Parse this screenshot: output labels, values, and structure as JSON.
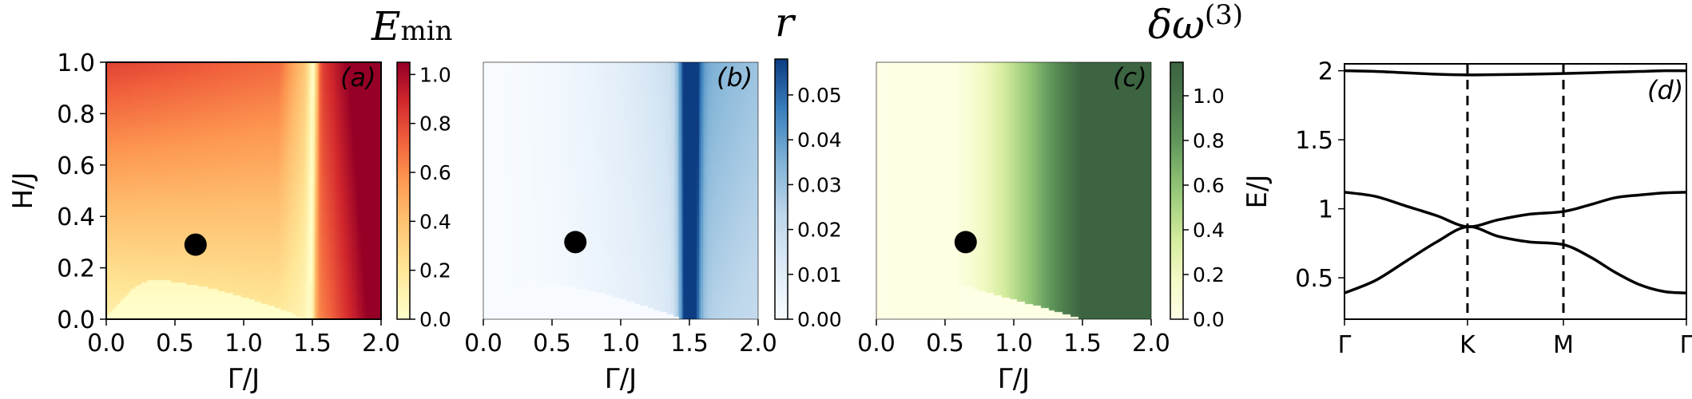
{
  "chart_data": [
    {
      "type": "heatmap",
      "panel_label": "(a)",
      "colorbar_title": "E",
      "colorbar_title_sub": "min",
      "xlabel": "Γ/J",
      "ylabel": "H/J",
      "xlim": [
        0,
        2
      ],
      "ylim": [
        0,
        1
      ],
      "xticks": [
        "0.0",
        "0.5",
        "1.0",
        "1.5",
        "2.0"
      ],
      "yticks": [
        "0.0",
        "0.2",
        "0.4",
        "0.6",
        "0.8",
        "1.0"
      ],
      "colormap": "YlOrRd",
      "colorbar_range": [
        0,
        1.05
      ],
      "colorbar_ticks": [
        "0.0",
        "0.2",
        "0.4",
        "0.6",
        "0.8",
        "1.0"
      ],
      "colorbar_tick_values": [
        0,
        0.2,
        0.4,
        0.6,
        0.8,
        1.0
      ],
      "features": {
        "minimum_line_gamma": 1.5,
        "low_region_peak_h": 0.15,
        "low_region_peak_gamma": 0.35
      },
      "marker": {
        "x": 0.65,
        "y": 0.29
      }
    },
    {
      "type": "heatmap",
      "panel_label": "(b)",
      "colorbar_title": "r",
      "xlabel": "Γ/J",
      "ylabel": "",
      "xlim": [
        0,
        2
      ],
      "ylim": [
        0,
        1
      ],
      "xticks": [
        "0.0",
        "0.5",
        "1.0",
        "1.5",
        "2.0"
      ],
      "colormap": "Blues",
      "colorbar_range": [
        0,
        0.058
      ],
      "colorbar_ticks": [
        "0.00",
        "0.01",
        "0.02",
        "0.03",
        "0.04",
        "0.05"
      ],
      "colorbar_tick_values": [
        0,
        0.01,
        0.02,
        0.03,
        0.04,
        0.05
      ],
      "features": {
        "peak_line_gamma": 1.5,
        "zero_region_peak_h": 0.15
      },
      "marker": {
        "x": 0.67,
        "y": 0.3
      }
    },
    {
      "type": "heatmap",
      "panel_label": "(c)",
      "colorbar_title": "δω",
      "colorbar_title_sup": "(3)",
      "xlabel": "Γ/J",
      "ylabel": "",
      "xlim": [
        0,
        2
      ],
      "ylim": [
        0,
        1
      ],
      "xticks": [
        "0.0",
        "0.5",
        "1.0",
        "1.5",
        "2.0"
      ],
      "colormap": "YlGn",
      "colorbar_range": [
        0,
        1.15
      ],
      "colorbar_ticks": [
        "0.0",
        "0.2",
        "0.4",
        "0.6",
        "0.8",
        "1.0"
      ],
      "colorbar_tick_values": [
        0,
        0.2,
        0.4,
        0.6,
        0.8,
        1.0
      ],
      "features": {
        "onset_gamma": 0.6,
        "saturation_gamma": 1.5
      },
      "marker": {
        "x": 0.65,
        "y": 0.3
      }
    },
    {
      "type": "line",
      "panel_label": "(d)",
      "xlabel": "",
      "ylabel": "E/J",
      "xticks": [
        "Γ",
        "K",
        "M",
        "Γ"
      ],
      "x_tick_positions": [
        0,
        1,
        1.78,
        2.78
      ],
      "ylim": [
        0.2,
        2.05
      ],
      "yticks": [
        "0.5",
        "1",
        "1.5",
        "2"
      ],
      "ytick_values": [
        0.5,
        1,
        1.5,
        2
      ],
      "vlines_at": [
        1,
        1.78
      ],
      "series": [
        {
          "x": [
            0,
            0.25,
            0.5,
            0.75,
            1.0,
            1.25,
            1.5,
            1.78,
            2.0,
            2.2,
            2.4,
            2.6,
            2.78
          ],
          "values": [
            2.0,
            1.995,
            1.985,
            1.975,
            1.97,
            1.972,
            1.975,
            1.98,
            1.985,
            1.99,
            1.995,
            2.0,
            2.0
          ]
        },
        {
          "x": [
            0,
            0.25,
            0.5,
            0.75,
            1.0,
            1.25,
            1.5,
            1.78,
            2.0,
            2.2,
            2.4,
            2.6,
            2.78
          ],
          "values": [
            1.12,
            1.09,
            1.02,
            0.95,
            0.87,
            0.92,
            0.96,
            0.98,
            1.03,
            1.08,
            1.1,
            1.115,
            1.12
          ]
        },
        {
          "x": [
            0,
            0.25,
            0.5,
            0.75,
            1.0,
            1.25,
            1.5,
            1.78,
            2.0,
            2.2,
            2.4,
            2.6,
            2.78
          ],
          "values": [
            0.39,
            0.48,
            0.62,
            0.76,
            0.87,
            0.8,
            0.76,
            0.74,
            0.65,
            0.54,
            0.45,
            0.4,
            0.39
          ]
        }
      ]
    }
  ]
}
